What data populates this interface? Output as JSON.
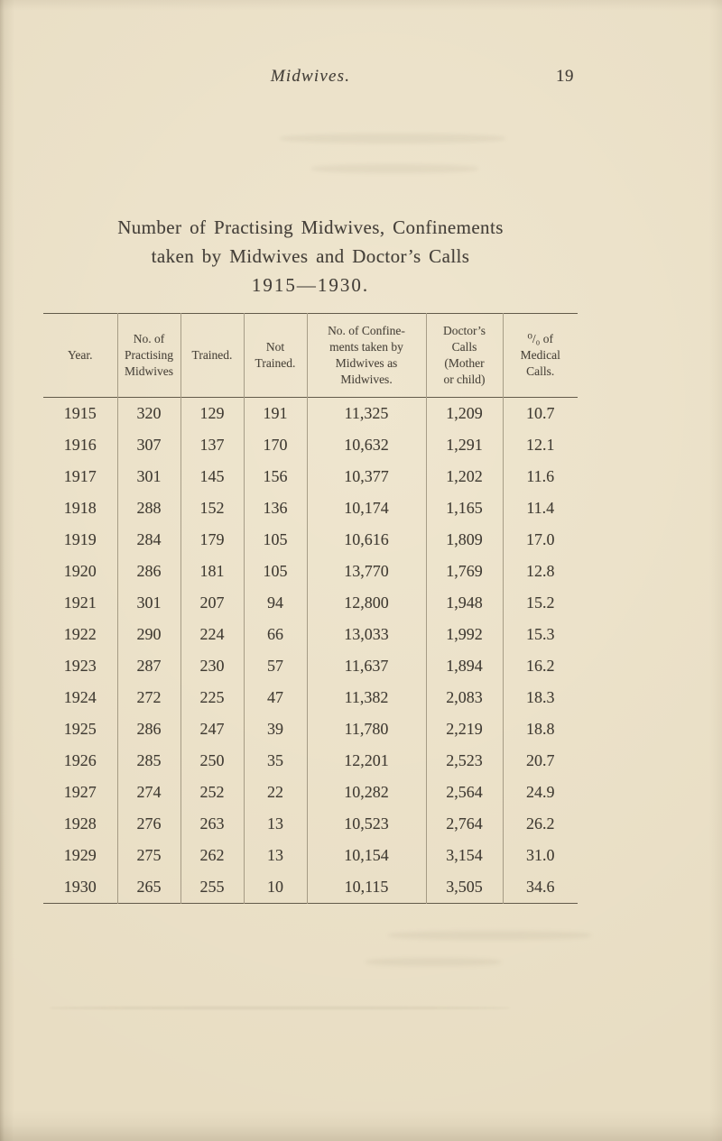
{
  "running_header": {
    "title": "Midwives.",
    "page_number": "19"
  },
  "title": {
    "line1": "Number of Practising Midwives, Confinements",
    "line2": "taken by Midwives and Doctor’s Calls",
    "line3": "1915—1930."
  },
  "table": {
    "column_headers": [
      "Year.",
      "No. of\nPractising\nMidwives",
      "Trained.",
      "Not\nTrained.",
      "No. of Confine-\nments taken by\nMidwives as\nMidwives.",
      "Doctor’s\nCalls\n(Mother\nor child)",
      "⁰/₀ of\nMedical\nCalls."
    ],
    "rows": [
      [
        "1915",
        "320",
        "129",
        "191",
        "11,325",
        "1,209",
        "10.7"
      ],
      [
        "1916",
        "307",
        "137",
        "170",
        "10,632",
        "1,291",
        "12.1"
      ],
      [
        "1917",
        "301",
        "145",
        "156",
        "10,377",
        "1,202",
        "11.6"
      ],
      [
        "1918",
        "288",
        "152",
        "136",
        "10,174",
        "1,165",
        "11.4"
      ],
      [
        "1919",
        "284",
        "179",
        "105",
        "10,616",
        "1,809",
        "17.0"
      ],
      [
        "1920",
        "286",
        "181",
        "105",
        "13,770",
        "1,769",
        "12.8"
      ],
      [
        "1921",
        "301",
        "207",
        "94",
        "12,800",
        "1,948",
        "15.2"
      ],
      [
        "1922",
        "290",
        "224",
        "66",
        "13,033",
        "1,992",
        "15.3"
      ],
      [
        "1923",
        "287",
        "230",
        "57",
        "11,637",
        "1,894",
        "16.2"
      ],
      [
        "1924",
        "272",
        "225",
        "47",
        "11,382",
        "2,083",
        "18.3"
      ],
      [
        "1925",
        "286",
        "247",
        "39",
        "11,780",
        "2,219",
        "18.8"
      ],
      [
        "1926",
        "285",
        "250",
        "35",
        "12,201",
        "2,523",
        "20.7"
      ],
      [
        "1927",
        "274",
        "252",
        "22",
        "10,282",
        "2,564",
        "24.9"
      ],
      [
        "1928",
        "276",
        "263",
        "13",
        "10,523",
        "2,764",
        "26.2"
      ],
      [
        "1929",
        "275",
        "262",
        "13",
        "10,154",
        "3,154",
        "31.0"
      ],
      [
        "1930",
        "265",
        "255",
        "10",
        "10,115",
        "3,505",
        "34.6"
      ]
    ]
  },
  "colors": {
    "paper": "#e8ddc3",
    "ink": "#45403a",
    "rule": "#494232"
  }
}
